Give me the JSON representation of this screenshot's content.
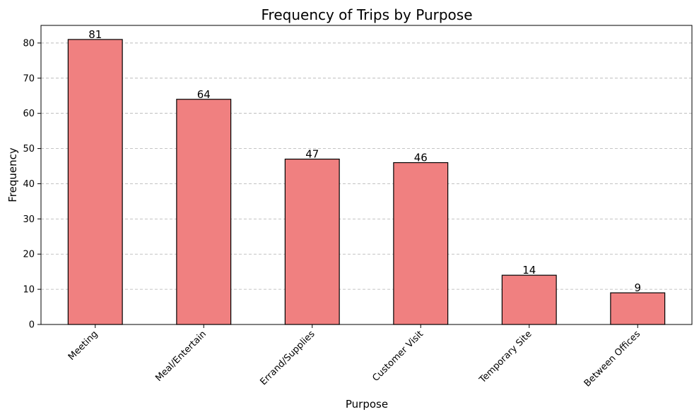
{
  "chart_data": {
    "type": "bar",
    "title": "Frequency of Trips by Purpose",
    "xlabel": "Purpose",
    "ylabel": "Frequency",
    "categories": [
      "Meeting",
      "Meal/Entertain",
      "Errand/Supplies",
      "Customer Visit",
      "Temporary Site",
      "Between Offices"
    ],
    "values": [
      81,
      64,
      47,
      46,
      14,
      9
    ],
    "ylim": [
      0,
      85
    ],
    "yticks": [
      0,
      10,
      20,
      30,
      40,
      50,
      60,
      70,
      80
    ],
    "grid": "y-dashed",
    "legend": "none",
    "bar_color": "#f08080",
    "edge_color": "#000000",
    "data_labels": true
  }
}
